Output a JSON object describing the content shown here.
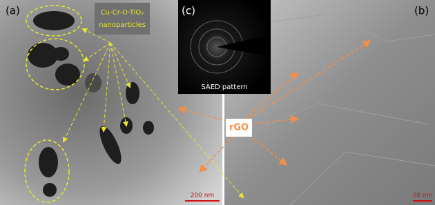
{
  "panels": {
    "a": "(a)",
    "b": "(b)",
    "c": "(c)"
  },
  "labels": {
    "nanoparticles": [
      "Cu-Cr-O-TiO₂",
      "nanoparticles"
    ],
    "saed": "SAED pattern",
    "rgo": "rGO"
  },
  "scale_bars": {
    "a": "200 nm",
    "b": "20 nm"
  }
}
